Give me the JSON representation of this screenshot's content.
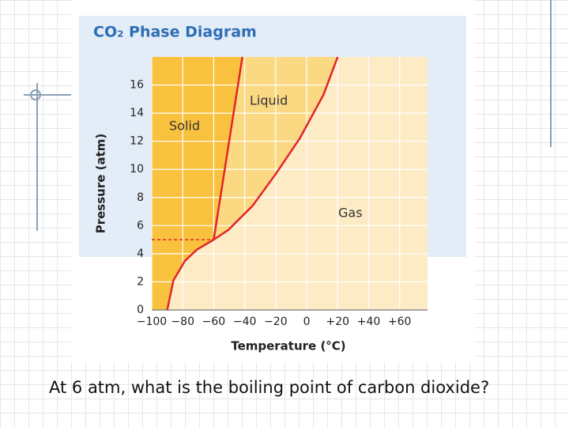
{
  "chart_data": {
    "type": "line",
    "title": "CO₂ Phase Diagram",
    "x_label": "Temperature (°C)",
    "y_label": "Pressure (atm)",
    "xlim": [
      -100,
      78
    ],
    "ylim": [
      0,
      18
    ],
    "xticks": [
      {
        "value": -100,
        "label": "−100"
      },
      {
        "value": -80,
        "label": "−80"
      },
      {
        "value": -60,
        "label": "−60"
      },
      {
        "value": -40,
        "label": "−40"
      },
      {
        "value": -20,
        "label": "−20"
      },
      0,
      {
        "value": 20,
        "label": "+20"
      },
      {
        "value": 40,
        "label": "+40"
      },
      {
        "value": 60,
        "label": "+60"
      }
    ],
    "yticks": [
      0,
      2,
      4,
      6,
      8,
      10,
      12,
      14,
      16
    ],
    "grid": true,
    "series": [
      {
        "color": "#e0262b",
        "x": [
          -90,
          -86,
          -78.5,
          -70.8,
          -60
        ],
        "values": [
          0,
          2.1,
          3.5,
          4.3,
          5
        ]
      },
      {
        "color": "#e0262b",
        "x": [
          -60,
          -41.5
        ],
        "values": [
          5,
          18
        ]
      },
      {
        "color": "#e0262b",
        "x": [
          -60,
          -50.5,
          -35,
          -19.8,
          -4.5,
          10.8,
          20
        ],
        "values": [
          5,
          5.7,
          7.4,
          9.7,
          12.2,
          15.3,
          18
        ]
      }
    ],
    "triple_point": {
      "x": -60,
      "y": 5
    },
    "annotations": [
      "Solid",
      "Liquid",
      "Gas"
    ]
  },
  "question": "At 6 atm, what is the boiling point of carbon dioxide?"
}
